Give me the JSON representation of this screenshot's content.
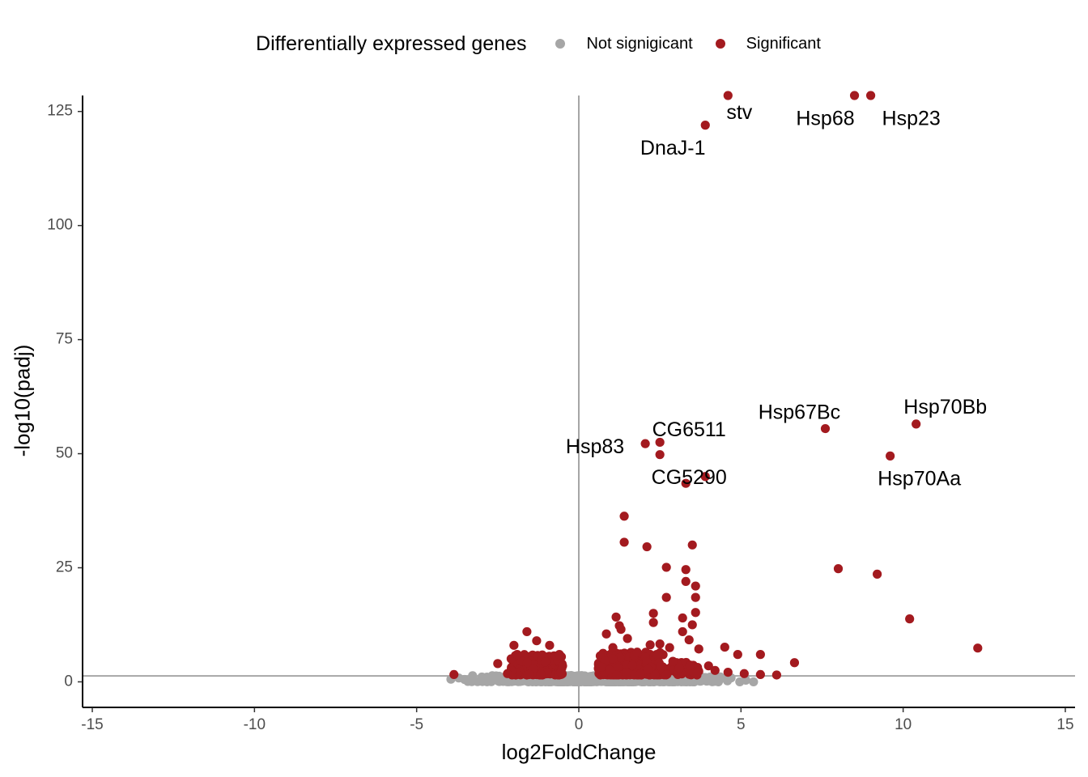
{
  "chart_data": {
    "type": "scatter",
    "title": "",
    "xlabel": "log2FoldChange",
    "ylabel": "-log10(padj)",
    "xlim": [
      -15.3,
      15.3
    ],
    "ylim": [
      -5.6,
      128.5
    ],
    "x_ticks": [
      -15,
      -10,
      -5,
      0,
      5,
      10,
      15
    ],
    "y_ticks": [
      0,
      25,
      50,
      75,
      100,
      125
    ],
    "grid": false,
    "reference_lines": {
      "vertical_x": 0,
      "horizontal_y": 1.3
    },
    "legend": {
      "title": "Differentially expressed genes",
      "position": "top",
      "entries": [
        {
          "label": "Not signigicant",
          "color": "#a6a6a6"
        },
        {
          "label": "Significant",
          "color": "#a31a1f"
        }
      ]
    },
    "colors": {
      "not_significant": "#a6a6a6",
      "significant": "#a31a1f",
      "reference_line": "#a6a6a6"
    },
    "labeled_points": [
      {
        "gene": "stv",
        "x": 4.6,
        "y": 128.5,
        "label_x": 4.95,
        "label_y": 124.5
      },
      {
        "gene": "Hsp68",
        "x": 8.5,
        "y": 128.5,
        "label_x": 7.6,
        "label_y": 123.2
      },
      {
        "gene": "Hsp23",
        "x": 9.0,
        "y": 128.5,
        "label_x": 10.25,
        "label_y": 123.2
      },
      {
        "gene": "DnaJ-1",
        "x": 3.9,
        "y": 122.0,
        "label_x": 2.9,
        "label_y": 116.7
      },
      {
        "gene": "Hsp70Bb",
        "x": 10.4,
        "y": 56.5,
        "label_x": 11.3,
        "label_y": 60.0
      },
      {
        "gene": "Hsp67Bc",
        "x": 7.6,
        "y": 55.5,
        "label_x": 6.8,
        "label_y": 58.8
      },
      {
        "gene": "CG6511",
        "x": 2.5,
        "y": 52.5,
        "label_x": 3.4,
        "label_y": 55.0
      },
      {
        "gene": "Hsp83",
        "x": 2.05,
        "y": 52.2,
        "label_x": 0.5,
        "label_y": 51.3
      },
      {
        "gene": "Hsp70Aa",
        "x": 9.6,
        "y": 49.5,
        "label_x": 10.5,
        "label_y": 44.3
      },
      {
        "gene": "CG5290",
        "x": 3.3,
        "y": 43.5,
        "label_x": 3.4,
        "label_y": 44.5
      }
    ],
    "significant_other": [
      [
        2.5,
        49.8
      ],
      [
        3.9,
        45.0
      ],
      [
        1.4,
        36.3
      ],
      [
        1.4,
        30.6
      ],
      [
        3.5,
        30.0
      ],
      [
        2.1,
        29.6
      ],
      [
        2.7,
        25.1
      ],
      [
        8.0,
        24.8
      ],
      [
        3.3,
        24.6
      ],
      [
        9.2,
        23.6
      ],
      [
        3.3,
        22.0
      ],
      [
        3.6,
        21.0
      ],
      [
        2.7,
        18.5
      ],
      [
        3.6,
        18.5
      ],
      [
        2.3,
        15.0
      ],
      [
        3.6,
        15.2
      ],
      [
        1.15,
        14.2
      ],
      [
        10.2,
        13.8
      ],
      [
        1.25,
        12.3
      ],
      [
        3.2,
        14.0
      ],
      [
        2.3,
        13.0
      ],
      [
        3.5,
        12.5
      ],
      [
        1.3,
        11.5
      ],
      [
        3.2,
        11.0
      ],
      [
        1.5,
        9.5
      ],
      [
        3.4,
        9.2
      ],
      [
        12.3,
        7.4
      ],
      [
        4.5,
        7.6
      ],
      [
        4.9,
        6.0
      ],
      [
        5.6,
        6.0
      ],
      [
        6.65,
        4.2
      ],
      [
        3.7,
        7.2
      ],
      [
        -1.6,
        11.0
      ],
      [
        -1.3,
        9.0
      ],
      [
        -2.0,
        8.0
      ],
      [
        -0.9,
        8.0
      ],
      [
        -2.5,
        4.0
      ],
      [
        -3.85,
        1.6
      ],
      [
        -2.2,
        1.8
      ],
      [
        2.2,
        8.1
      ],
      [
        2.5,
        8.3
      ],
      [
        2.8,
        7.5
      ],
      [
        1.8,
        6.5
      ],
      [
        4.0,
        3.5
      ],
      [
        4.2,
        2.5
      ],
      [
        4.6,
        2.1
      ],
      [
        5.1,
        1.8
      ],
      [
        5.6,
        1.6
      ],
      [
        6.1,
        1.5
      ],
      [
        3.1,
        3.0
      ],
      [
        2.9,
        4.5
      ],
      [
        0.85,
        10.5
      ],
      [
        1.05,
        7.5
      ],
      [
        -0.6,
        6.0
      ],
      [
        -1.9,
        6.0
      ],
      [
        0.95,
        2.6
      ],
      [
        0.7,
        3.2
      ],
      [
        -0.5,
        3.5
      ]
    ],
    "clusters": {
      "significant": [
        {
          "x_range": [
            -2.1,
            -0.5
          ],
          "y_range": [
            1.5,
            6.0
          ],
          "count": 180
        },
        {
          "x_range": [
            0.6,
            2.6
          ],
          "y_range": [
            1.5,
            6.5
          ],
          "count": 260
        },
        {
          "x_range": [
            2.6,
            3.7
          ],
          "y_range": [
            1.5,
            4.5
          ],
          "count": 45
        }
      ],
      "not_significant": [
        {
          "x_range": [
            -4.5,
            5.8
          ],
          "y_range": [
            0.0,
            1.4
          ],
          "count": 900
        }
      ]
    }
  }
}
